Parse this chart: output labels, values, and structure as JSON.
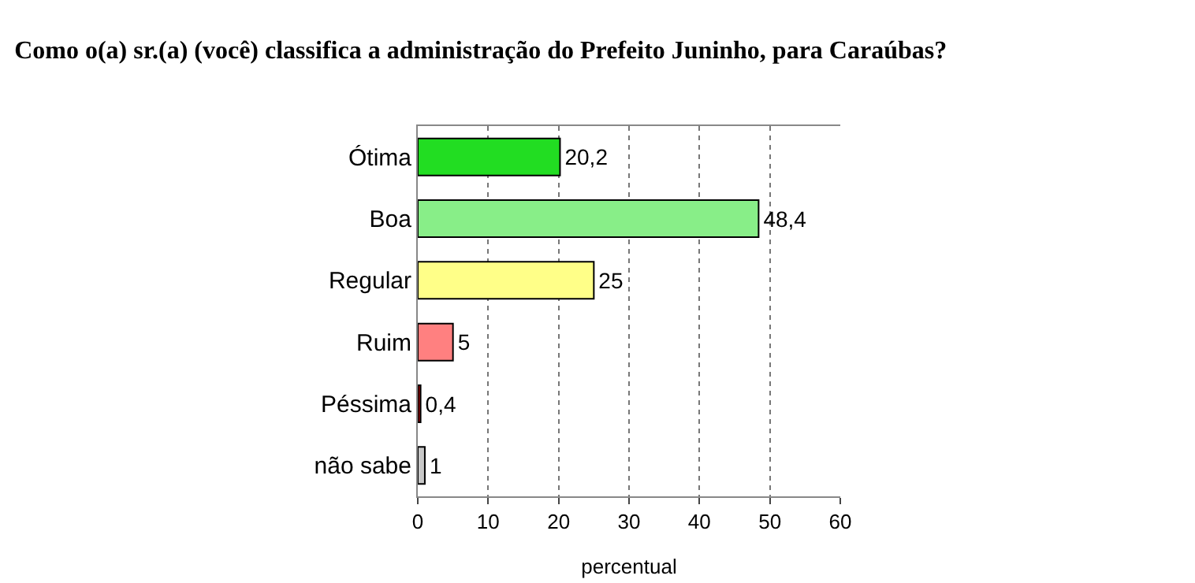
{
  "chart_data": {
    "type": "bar",
    "orientation": "horizontal",
    "title": "Como o(a) sr.(a) (você) classifica a administração do Prefeito Juninho, para Caraúbas?",
    "xlabel": "percentual",
    "categories": [
      "Ótima",
      "Boa",
      "Regular",
      "Ruim",
      "Péssima",
      "não sabe"
    ],
    "values": [
      20.2,
      48.4,
      25,
      5,
      0.4,
      1
    ],
    "colors": [
      "#22dd22",
      "#88ee88",
      "#ffff88",
      "#ff8080",
      "#800000",
      "#c8c8c8"
    ],
    "value_labels": [
      "20,2",
      "48,4",
      "25",
      "5",
      "0,4",
      "1"
    ],
    "xlim": [
      0,
      60
    ],
    "xticks": [
      0,
      10,
      20,
      30,
      40,
      50,
      60
    ],
    "grid": "x",
    "legend": false
  }
}
